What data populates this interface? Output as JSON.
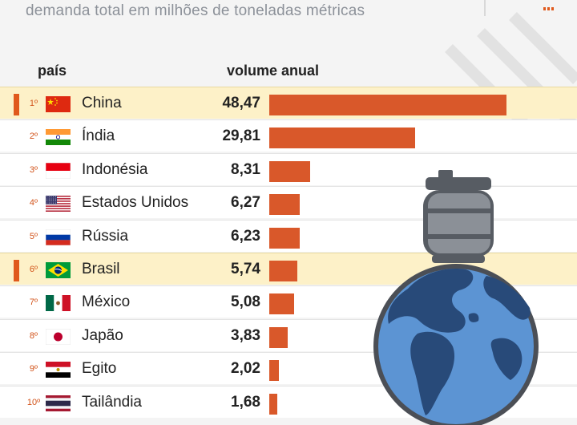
{
  "header": {
    "subtitle": "demanda total em milhões de toneladas métricas",
    "col_country": "país",
    "col_volume": "volume anual"
  },
  "colors": {
    "bar": "#d9582a",
    "highlight": "#fdf1c8",
    "marker": "#e0591c",
    "ocean": "#5c94d3",
    "land": "#284a79",
    "canister": "#575c63"
  },
  "chart_data": {
    "type": "bar",
    "orientation": "horizontal",
    "title": "demanda total em milhões de toneladas métricas",
    "xlabel": "volume anual",
    "ylabel": "país",
    "xlim": [
      0,
      50
    ],
    "categories": [
      "China",
      "Índia",
      "Indonésia",
      "Estados Unidos",
      "Rússia",
      "Brasil",
      "México",
      "Japão",
      "Egito",
      "Tailândia"
    ],
    "values": [
      48.47,
      29.81,
      8.31,
      6.27,
      6.23,
      5.74,
      5.08,
      3.83,
      2.02,
      1.68
    ],
    "rows": [
      {
        "rank": "1º",
        "country": "China",
        "value": "48,47",
        "amount": 48.47,
        "flag": "flag-china",
        "highlight": true
      },
      {
        "rank": "2º",
        "country": "Índia",
        "value": "29,81",
        "amount": 29.81,
        "flag": "flag-india",
        "highlight": false
      },
      {
        "rank": "3º",
        "country": "Indonésia",
        "value": "8,31",
        "amount": 8.31,
        "flag": "flag-indonesia",
        "highlight": false
      },
      {
        "rank": "4º",
        "country": "Estados Unidos",
        "value": "6,27",
        "amount": 6.27,
        "flag": "flag-usa",
        "highlight": false
      },
      {
        "rank": "5º",
        "country": "Rússia",
        "value": "6,23",
        "amount": 6.23,
        "flag": "flag-russia",
        "highlight": false
      },
      {
        "rank": "6º",
        "country": "Brasil",
        "value": "5,74",
        "amount": 5.74,
        "flag": "flag-brazil",
        "highlight": true
      },
      {
        "rank": "7º",
        "country": "México",
        "value": "5,08",
        "amount": 5.08,
        "flag": "flag-mexico",
        "highlight": false
      },
      {
        "rank": "8º",
        "country": "Japão",
        "value": "3,83",
        "amount": 3.83,
        "flag": "flag-japan",
        "highlight": false
      },
      {
        "rank": "9º",
        "country": "Egito",
        "value": "2,02",
        "amount": 2.02,
        "flag": "flag-egypt",
        "highlight": false
      },
      {
        "rank": "10º",
        "country": "Tailândia",
        "value": "1,68",
        "amount": 1.68,
        "flag": "flag-thailand",
        "highlight": false
      }
    ]
  }
}
